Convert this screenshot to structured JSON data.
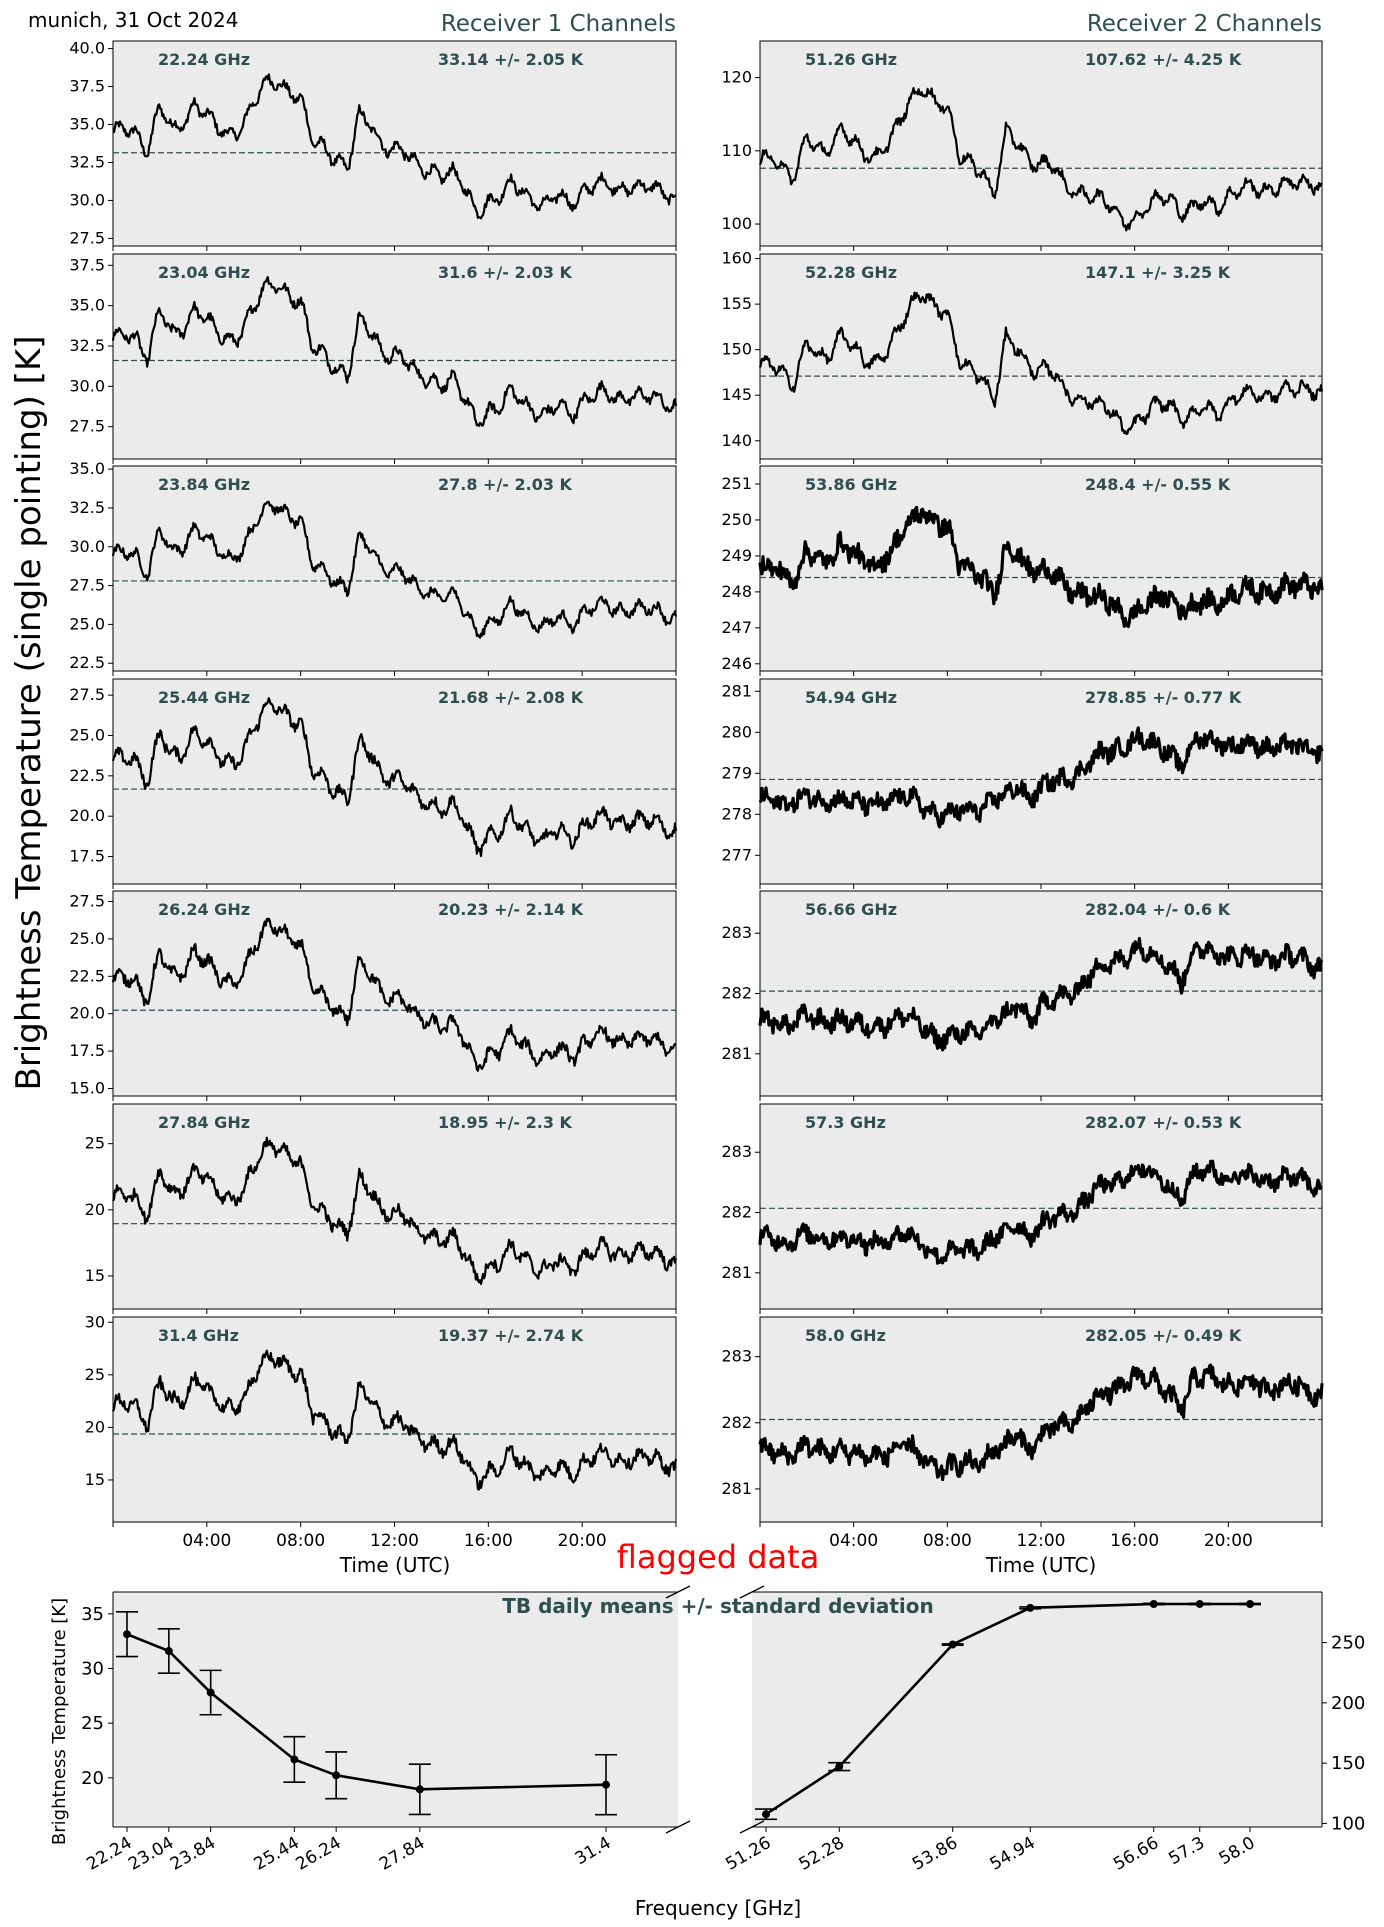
{
  "header": {
    "station": "munich, 31 Oct 2024",
    "receiver1": "Receiver 1 Channels",
    "receiver2": "Receiver 2 Channels",
    "ylabel": "Brightness Temperature (single pointing) [K]",
    "time_label": "Time (UTC)",
    "flagged": "flagged data"
  },
  "colors": {
    "panel_bg": "#ebebeb",
    "line": "#000000",
    "mean_line": "#2f4f4f",
    "annotation": "#2f4f4f",
    "flagged": "#ff0000"
  },
  "chart_data": [
    {
      "type": "line",
      "x_ticks": [
        "04:00",
        "08:00",
        "12:00",
        "16:00",
        "20:00"
      ],
      "xlabel": "Time (UTC)",
      "series_shape": {
        "hours": [
          0,
          0.5,
          1,
          1.5,
          2,
          2.5,
          3,
          3.5,
          4,
          4.5,
          5,
          5.5,
          6,
          6.5,
          7,
          7.5,
          8,
          8.5,
          9,
          9.5,
          10,
          10.5,
          11,
          11.5,
          12,
          12.5,
          13,
          13.5,
          14,
          14.5,
          15,
          15.5,
          16,
          16.5,
          17,
          17.5,
          18,
          18.5,
          19,
          19.5,
          20,
          20.5,
          21,
          21.5,
          22,
          22.5,
          23,
          23.5,
          24
        ],
        "receiver1_norm": [
          0.55,
          0.62,
          0.6,
          0.45,
          0.78,
          0.6,
          0.68,
          0.82,
          0.7,
          0.6,
          0.58,
          0.65,
          0.8,
          0.95,
          1.0,
          0.92,
          0.84,
          0.5,
          0.48,
          0.4,
          0.3,
          0.7,
          0.65,
          0.5,
          0.46,
          0.4,
          0.32,
          0.32,
          0.25,
          0.25,
          0.15,
          0.0,
          0.05,
          0.06,
          0.2,
          0.15,
          0.05,
          0.0,
          0.1,
          0.05,
          0.13,
          0.16,
          0.18,
          0.16,
          0.18,
          0.15,
          0.14,
          0.13,
          0.1
        ],
        "receiver2_upper_norm": [
          0.4,
          0.45,
          0.4,
          0.32,
          0.6,
          0.48,
          0.55,
          0.7,
          0.55,
          0.45,
          0.48,
          0.6,
          0.72,
          0.88,
          1.0,
          0.9,
          0.82,
          0.45,
          0.42,
          0.38,
          0.15,
          0.62,
          0.58,
          0.45,
          0.4,
          0.38,
          0.25,
          0.22,
          0.18,
          0.12,
          0.1,
          0.0,
          0.0,
          0.05,
          0.15,
          0.18,
          0.05,
          0.05,
          0.12,
          0.1,
          0.18,
          0.2,
          0.22,
          0.22,
          0.25,
          0.25,
          0.24,
          0.28,
          0.25
        ],
        "receiver2_lower_norm": [
          0.2,
          0.22,
          0.2,
          0.22,
          0.25,
          0.2,
          0.24,
          0.25,
          0.18,
          0.15,
          0.2,
          0.22,
          0.25,
          0.22,
          0.16,
          0.08,
          0.05,
          0.08,
          0.12,
          0.15,
          0.22,
          0.25,
          0.38,
          0.25,
          0.35,
          0.4,
          0.45,
          0.52,
          0.62,
          0.7,
          0.74,
          0.82,
          0.9,
          0.85,
          0.8,
          0.75,
          0.6,
          0.82,
          0.88,
          0.88,
          0.82,
          0.8,
          0.82,
          0.8,
          0.81,
          0.8,
          0.78,
          0.76,
          0.74
        ]
      },
      "channels": [
        {
          "receiver": 1,
          "freq": "22.24 GHz",
          "stat": "33.14 +/- 2.05 K",
          "mean": 33.14,
          "min": 29.5,
          "max": 38.0,
          "ylim": [
            27.0,
            40.5
          ],
          "yticks": [
            "27.5",
            "30.0",
            "32.5",
            "35.0",
            "37.5",
            "40.0"
          ],
          "noise": 0.12
        },
        {
          "receiver": 1,
          "freq": "23.04 GHz",
          "stat": "31.6 +/- 2.03 K",
          "mean": 31.6,
          "min": 28.0,
          "max": 36.5,
          "ylim": [
            25.5,
            38.2
          ],
          "yticks": [
            "27.5",
            "30.0",
            "32.5",
            "35.0",
            "37.5"
          ],
          "noise": 0.12
        },
        {
          "receiver": 1,
          "freq": "23.84 GHz",
          "stat": "27.8 +/- 2.03 K",
          "mean": 27.8,
          "min": 24.7,
          "max": 32.8,
          "ylim": [
            22.0,
            35.2
          ],
          "yticks": [
            "22.5",
            "25.0",
            "27.5",
            "30.0",
            "32.5",
            "35.0"
          ],
          "noise": 0.12
        },
        {
          "receiver": 1,
          "freq": "25.44 GHz",
          "stat": "21.68 +/- 2.08 K",
          "mean": 21.68,
          "min": 18.3,
          "max": 27.0,
          "ylim": [
            15.8,
            28.5
          ],
          "yticks": [
            "17.5",
            "20.0",
            "22.5",
            "25.0",
            "27.5"
          ],
          "noise": 0.14
        },
        {
          "receiver": 1,
          "freq": "26.24 GHz",
          "stat": "20.23 +/- 2.14 K",
          "mean": 20.23,
          "min": 16.8,
          "max": 26.0,
          "ylim": [
            14.5,
            28.2
          ],
          "yticks": [
            "15.0",
            "17.5",
            "20.0",
            "22.5",
            "25.0",
            "27.5"
          ],
          "noise": 0.14
        },
        {
          "receiver": 1,
          "freq": "27.84 GHz",
          "stat": "18.95 +/- 2.3 K",
          "mean": 18.95,
          "min": 15.2,
          "max": 25.0,
          "ylim": [
            12.5,
            28.0
          ],
          "yticks": [
            "15",
            "20",
            "25"
          ],
          "noise": 0.16
        },
        {
          "receiver": 1,
          "freq": "31.4 GHz",
          "stat": "19.37 +/- 2.74 K",
          "mean": 19.37,
          "min": 15.2,
          "max": 26.8,
          "ylim": [
            11.0,
            30.5
          ],
          "yticks": [
            "15",
            "20",
            "25",
            "30"
          ],
          "noise": 0.18
        },
        {
          "receiver": 2,
          "freq": "51.26 GHz",
          "stat": "107.62 +/- 4.25 K",
          "mean": 107.62,
          "min": 100.8,
          "max": 119.0,
          "ylim": [
            97.0,
            125.0
          ],
          "yticks": [
            "100",
            "110",
            "120"
          ],
          "shape": "upper",
          "noise": 0.12
        },
        {
          "receiver": 2,
          "freq": "52.28 GHz",
          "stat": "147.1 +/- 3.25 K",
          "mean": 147.1,
          "min": 141.8,
          "max": 156.5,
          "ylim": [
            138.0,
            160.5
          ],
          "yticks": [
            "140",
            "145",
            "150",
            "155",
            "160"
          ],
          "shape": "upper",
          "noise": 0.12
        },
        {
          "receiver": 2,
          "freq": "53.86 GHz",
          "stat": "248.4 +/- 0.55 K",
          "mean": 248.4,
          "min": 247.4,
          "max": 250.3,
          "ylim": [
            245.8,
            251.5
          ],
          "yticks": [
            "246",
            "247",
            "248",
            "249",
            "250",
            "251"
          ],
          "shape": "upper",
          "noise": 0.35
        },
        {
          "receiver": 2,
          "freq": "54.94 GHz",
          "stat": "278.85 +/- 0.77 K",
          "mean": 278.85,
          "min": 277.85,
          "max": 280.1,
          "ylim": [
            276.3,
            281.3
          ],
          "yticks": [
            "277",
            "278",
            "279",
            "280",
            "281"
          ],
          "shape": "lower",
          "noise": 0.35
        },
        {
          "receiver": 2,
          "freq": "56.66 GHz",
          "stat": "282.04 +/- 0.6 K",
          "mean": 282.04,
          "min": 281.15,
          "max": 282.95,
          "ylim": [
            280.3,
            283.7
          ],
          "yticks": [
            "281",
            "282",
            "283"
          ],
          "shape": "lower",
          "noise": 0.3
        },
        {
          "receiver": 2,
          "freq": "57.3 GHz",
          "stat": "282.07 +/- 0.53 K",
          "mean": 282.07,
          "min": 281.2,
          "max": 282.9,
          "ylim": [
            280.4,
            283.8
          ],
          "yticks": [
            "281",
            "282",
            "283"
          ],
          "shape": "lower",
          "noise": 0.3
        },
        {
          "receiver": 2,
          "freq": "58.0 GHz",
          "stat": "282.05 +/- 0.49 K",
          "mean": 282.05,
          "min": 281.2,
          "max": 282.9,
          "ylim": [
            280.5,
            283.6
          ],
          "yticks": [
            "281",
            "282",
            "283"
          ],
          "shape": "lower",
          "noise": 0.3
        }
      ]
    },
    {
      "type": "line",
      "title": "TB daily means +/- standard deviation",
      "xlabel": "Frequency [GHz]",
      "ylabel": "Brightness Temperature [K]",
      "receiver1": {
        "freqs": [
          22.24,
          23.04,
          23.84,
          25.44,
          26.24,
          27.84,
          31.4
        ],
        "labels": [
          "22.24",
          "23.04",
          "23.84",
          "25.44",
          "26.24",
          "27.84",
          "31.4"
        ],
        "means": [
          33.14,
          31.6,
          27.8,
          21.68,
          20.23,
          18.95,
          19.37
        ],
        "stds": [
          2.05,
          2.03,
          2.03,
          2.08,
          2.14,
          2.3,
          2.74
        ],
        "ylim": [
          15.5,
          37.0
        ],
        "yticks": [
          "20",
          "25",
          "30",
          "35"
        ]
      },
      "receiver2": {
        "freqs": [
          51.26,
          52.28,
          53.86,
          54.94,
          56.66,
          57.3,
          58.0
        ],
        "labels": [
          "51.26",
          "52.28",
          "53.86",
          "54.94",
          "56.66",
          "57.3",
          "58.0"
        ],
        "means": [
          107.62,
          147.1,
          248.4,
          278.85,
          282.04,
          282.07,
          282.05
        ],
        "stds": [
          4.25,
          3.25,
          0.55,
          0.77,
          0.6,
          0.53,
          0.49
        ],
        "ylim": [
          97.0,
          292.0
        ],
        "yticks": [
          "100",
          "150",
          "200",
          "250"
        ]
      }
    }
  ]
}
